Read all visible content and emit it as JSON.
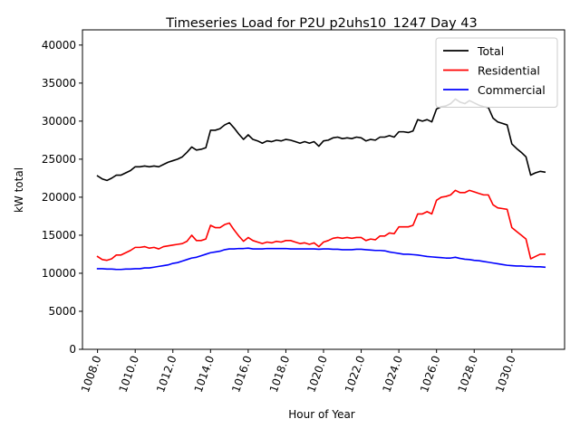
{
  "chart_data": {
    "type": "line",
    "title": "Timeseries Load for P2U p2uhs10_1247  Day 43",
    "xlabel": "Hour of Year",
    "ylabel": "kW total",
    "xlim": [
      1007.2,
      1032.8
    ],
    "ylim": [
      0,
      42000
    ],
    "xticks": [
      1008,
      1010,
      1012,
      1014,
      1016,
      1018,
      1020,
      1022,
      1024,
      1026,
      1028,
      1030
    ],
    "xtick_labels": [
      "1008.0",
      "1010.0",
      "1012.0",
      "1014.0",
      "1016.0",
      "1018.0",
      "1020.0",
      "1022.0",
      "1024.0",
      "1026.0",
      "1028.0",
      "1030.0"
    ],
    "yticks": [
      0,
      5000,
      10000,
      15000,
      20000,
      25000,
      30000,
      35000,
      40000
    ],
    "ytick_labels": [
      "0",
      "5000",
      "10000",
      "15000",
      "20000",
      "25000",
      "30000",
      "35000",
      "40000"
    ],
    "grid": false,
    "legend_position": "top-right",
    "x": [
      1008,
      1008.25,
      1008.5,
      1008.75,
      1009,
      1009.25,
      1009.5,
      1009.75,
      1010,
      1010.25,
      1010.5,
      1010.75,
      1011,
      1011.25,
      1011.5,
      1011.75,
      1012,
      1012.25,
      1012.5,
      1012.75,
      1013,
      1013.25,
      1013.5,
      1013.75,
      1014,
      1014.25,
      1014.5,
      1014.75,
      1015,
      1015.25,
      1015.5,
      1015.75,
      1016,
      1016.25,
      1016.5,
      1016.75,
      1017,
      1017.25,
      1017.5,
      1017.75,
      1018,
      1018.25,
      1018.5,
      1018.75,
      1019,
      1019.25,
      1019.5,
      1019.75,
      1020,
      1020.25,
      1020.5,
      1020.75,
      1021,
      1021.25,
      1021.5,
      1021.75,
      1022,
      1022.25,
      1022.5,
      1022.75,
      1023,
      1023.25,
      1023.5,
      1023.75,
      1024,
      1024.25,
      1024.5,
      1024.75,
      1025,
      1025.25,
      1025.5,
      1025.75,
      1026,
      1026.25,
      1026.5,
      1026.75,
      1027,
      1027.25,
      1027.5,
      1027.75,
      1028,
      1028.25,
      1028.5,
      1028.75,
      1029,
      1029.25,
      1029.5,
      1029.75,
      1030,
      1030.25,
      1030.5,
      1030.75,
      1031,
      1031.25,
      1031.5,
      1031.75
    ],
    "series": [
      {
        "name": "Total",
        "color": "#000000",
        "values": [
          22800,
          22400,
          22200,
          22500,
          22900,
          22900,
          23200,
          23500,
          24000,
          24000,
          24100,
          24000,
          24100,
          24000,
          24300,
          24600,
          24800,
          25000,
          25300,
          25900,
          26600,
          26200,
          26300,
          26500,
          28800,
          28800,
          29000,
          29500,
          29800,
          29100,
          28300,
          27600,
          28200,
          27600,
          27400,
          27100,
          27400,
          27300,
          27500,
          27400,
          27600,
          27500,
          27300,
          27100,
          27300,
          27100,
          27300,
          26700,
          27400,
          27500,
          27800,
          27900,
          27700,
          27800,
          27700,
          27900,
          27800,
          27400,
          27600,
          27500,
          27900,
          27900,
          28100,
          27900,
          28600,
          28600,
          28500,
          28700,
          30200,
          30000,
          30200,
          29900,
          31600,
          31900,
          32000,
          32300,
          32900,
          32500,
          32300,
          32700,
          32400,
          32100,
          31900,
          31800,
          30400,
          29900,
          29700,
          29500,
          27000,
          26400,
          25900,
          25300,
          22900,
          23200,
          23400,
          23300
        ]
      },
      {
        "name": "Residential",
        "color": "#ff0000",
        "values": [
          12200,
          11800,
          11700,
          11900,
          12400,
          12400,
          12700,
          13000,
          13400,
          13400,
          13500,
          13300,
          13400,
          13200,
          13500,
          13600,
          13700,
          13800,
          13900,
          14200,
          15000,
          14300,
          14300,
          14500,
          16300,
          16000,
          16000,
          16400,
          16600,
          15700,
          14900,
          14200,
          14700,
          14300,
          14100,
          13900,
          14100,
          14000,
          14200,
          14100,
          14300,
          14300,
          14100,
          13900,
          14000,
          13800,
          14000,
          13500,
          14100,
          14300,
          14600,
          14700,
          14600,
          14700,
          14600,
          14700,
          14700,
          14300,
          14500,
          14400,
          14900,
          14900,
          15300,
          15200,
          16100,
          16100,
          16100,
          16300,
          17800,
          17800,
          18100,
          17800,
          19600,
          20000,
          20100,
          20300,
          20900,
          20600,
          20600,
          20900,
          20700,
          20500,
          20300,
          20300,
          19000,
          18600,
          18500,
          18400,
          16000,
          15500,
          15000,
          14500,
          11900,
          12200,
          12500,
          12500
        ]
      },
      {
        "name": "Commercial",
        "color": "#0000ff",
        "values": [
          10600,
          10600,
          10550,
          10550,
          10500,
          10500,
          10550,
          10550,
          10600,
          10600,
          10700,
          10700,
          10800,
          10900,
          11000,
          11100,
          11300,
          11400,
          11600,
          11800,
          12000,
          12100,
          12300,
          12500,
          12700,
          12800,
          12900,
          13100,
          13200,
          13200,
          13250,
          13250,
          13300,
          13200,
          13200,
          13200,
          13250,
          13250,
          13250,
          13250,
          13250,
          13200,
          13200,
          13200,
          13200,
          13200,
          13200,
          13150,
          13200,
          13200,
          13150,
          13150,
          13100,
          13100,
          13100,
          13150,
          13150,
          13100,
          13050,
          13000,
          13000,
          12950,
          12800,
          12700,
          12600,
          12500,
          12500,
          12450,
          12400,
          12300,
          12200,
          12150,
          12100,
          12050,
          12000,
          12000,
          12100,
          11950,
          11850,
          11800,
          11700,
          11650,
          11550,
          11450,
          11350,
          11250,
          11150,
          11050,
          11000,
          10950,
          10950,
          10900,
          10900,
          10850,
          10850,
          10800
        ]
      }
    ]
  }
}
